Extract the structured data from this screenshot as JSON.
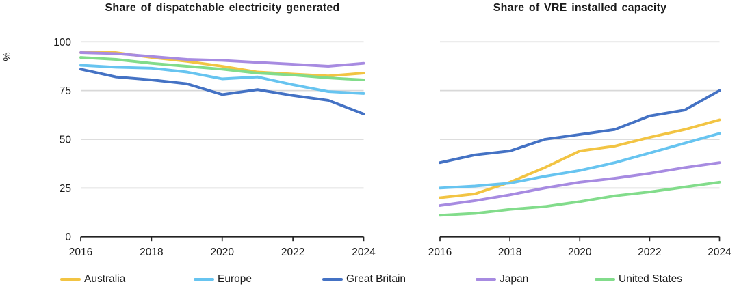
{
  "figure": {
    "background": "#ffffff",
    "grid_color": "#d8d8d8",
    "axis_color": "#222222",
    "text_color": "#1a1a1a"
  },
  "chart_data": [
    {
      "type": "line",
      "title": "Share of dispatchable electricity generated",
      "ylabel": "%",
      "xlabel": "",
      "xlim": [
        2016,
        2024
      ],
      "ylim": [
        0,
        100
      ],
      "grid": "horizontal",
      "x": [
        2016,
        2017,
        2018,
        2019,
        2020,
        2021,
        2022,
        2023,
        2024
      ],
      "x_ticks": [
        2016,
        2018,
        2020,
        2022,
        2024
      ],
      "x_tick_labels": [
        "2016",
        "2018",
        "2020",
        "2022",
        "2024"
      ],
      "y_ticks": [
        0,
        25,
        50,
        75,
        100
      ],
      "y_tick_labels": [
        "0",
        "25",
        "50",
        "75",
        "100"
      ],
      "series": [
        {
          "name": "Australia",
          "color": "#F2C443",
          "values": [
            94.5,
            94.5,
            92,
            90,
            87.5,
            84.5,
            83.5,
            82.5,
            84
          ]
        },
        {
          "name": "Europe",
          "color": "#67C4F0",
          "values": [
            88,
            87,
            86.5,
            84.5,
            81,
            82,
            78,
            74.5,
            73.5
          ]
        },
        {
          "name": "Great Britain",
          "color": "#4472C4",
          "values": [
            86,
            82,
            80.5,
            78.5,
            73,
            75.5,
            72.5,
            70,
            63
          ]
        },
        {
          "name": "Japan",
          "color": "#A78BE1",
          "values": [
            94.5,
            94,
            92.5,
            91,
            90.5,
            89.5,
            88.5,
            87.5,
            89
          ]
        },
        {
          "name": "United States",
          "color": "#82DC8B",
          "values": [
            92,
            91,
            89,
            87.5,
            86,
            84,
            83,
            81.5,
            80.5
          ]
        }
      ]
    },
    {
      "type": "line",
      "title": "Share of VRE installed capacity",
      "ylabel": "",
      "xlabel": "",
      "xlim": [
        2016,
        2024
      ],
      "ylim": [
        0,
        100
      ],
      "grid": "horizontal",
      "x": [
        2016,
        2017,
        2018,
        2019,
        2020,
        2021,
        2022,
        2023,
        2024
      ],
      "x_ticks": [
        2016,
        2018,
        2020,
        2022,
        2024
      ],
      "x_tick_labels": [
        "2016",
        "2018",
        "2020",
        "2022",
        "2024"
      ],
      "y_ticks": [
        0,
        25,
        50,
        75,
        100
      ],
      "y_tick_labels": null,
      "series": [
        {
          "name": "Australia",
          "color": "#F2C443",
          "values": [
            20,
            22,
            28,
            35.5,
            44,
            46.5,
            51,
            55,
            60
          ]
        },
        {
          "name": "Europe",
          "color": "#67C4F0",
          "values": [
            25,
            26,
            27.5,
            31,
            34,
            38,
            43,
            48,
            53
          ]
        },
        {
          "name": "Great Britain",
          "color": "#4472C4",
          "values": [
            38,
            42,
            44,
            50,
            52.5,
            55,
            62,
            65,
            75
          ]
        },
        {
          "name": "Japan",
          "color": "#A78BE1",
          "values": [
            16,
            18.5,
            21.5,
            25,
            28,
            30,
            32.5,
            35.5,
            38
          ]
        },
        {
          "name": "United States",
          "color": "#82DC8B",
          "values": [
            11,
            12,
            14,
            15.5,
            18,
            21,
            23,
            25.5,
            28
          ]
        }
      ]
    }
  ],
  "legend": {
    "position": "bottom",
    "items": [
      {
        "label": "Australia",
        "color": "#F2C443"
      },
      {
        "label": "Europe",
        "color": "#67C4F0"
      },
      {
        "label": "Great Britain",
        "color": "#4472C4"
      },
      {
        "label": "Japan",
        "color": "#A78BE1"
      },
      {
        "label": "United States",
        "color": "#82DC8B"
      }
    ]
  }
}
